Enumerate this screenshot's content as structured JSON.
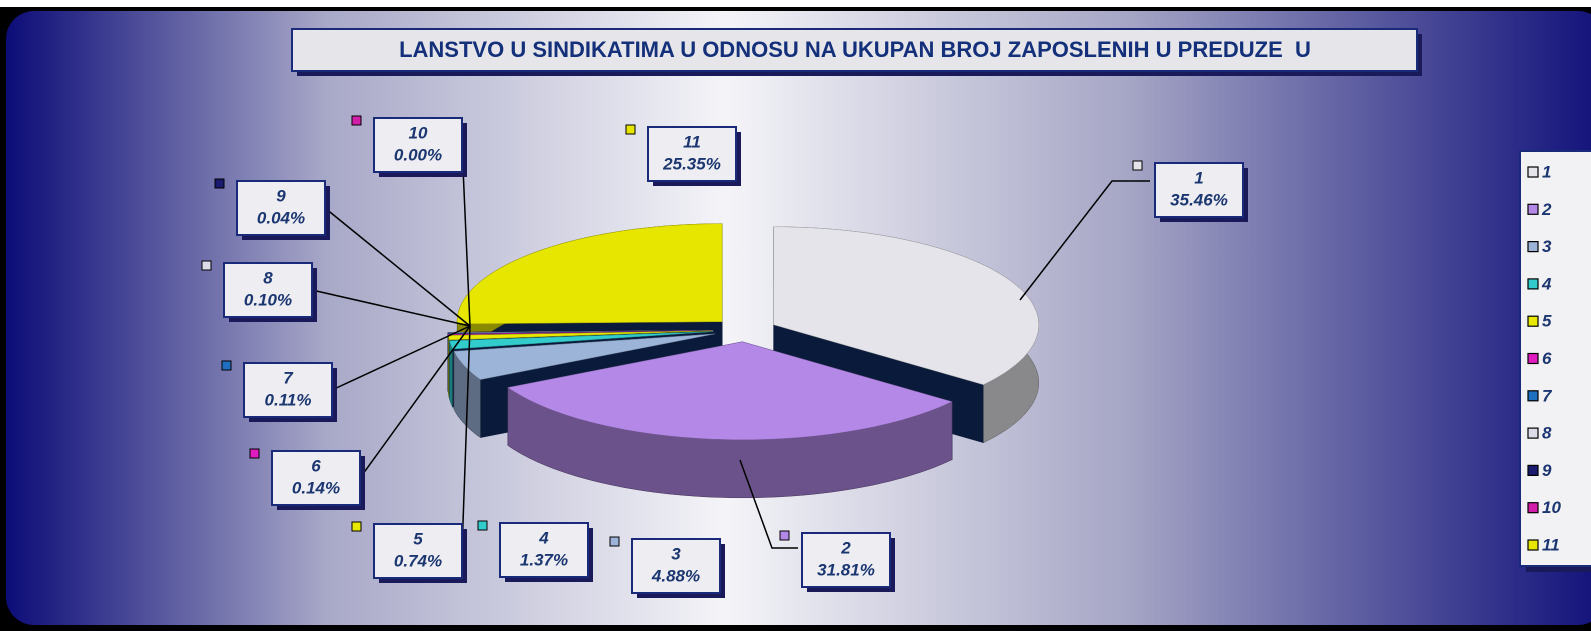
{
  "chart_data": {
    "type": "pie3d",
    "title": "LANSTVO U SINDIKATIMA U ODNOSU NA UKUPAN BROJ ZAPOSLENIH U PREDUZE  U",
    "categories": [
      "1",
      "2",
      "3",
      "4",
      "5",
      "6",
      "7",
      "8",
      "9",
      "10",
      "11"
    ],
    "values": [
      35.46,
      31.81,
      4.88,
      1.37,
      0.74,
      0.14,
      0.11,
      0.1,
      0.04,
      0.0,
      25.35
    ],
    "value_labels": [
      "35.46%",
      "31.81%",
      "4.88%",
      "1.37%",
      "0.74%",
      "0.14%",
      "0.11%",
      "0.10%",
      "0.04%",
      "0.00%",
      "25.35%"
    ],
    "colors": [
      "#e4e4ea",
      "#b388e6",
      "#9bb4d8",
      "#33cccc",
      "#e8e800",
      "#e01cc0",
      "#1f6fc0",
      "#dcdce8",
      "#1a1a6e",
      "#d21ea8",
      "#e6e600"
    ],
    "legend": "right"
  }
}
